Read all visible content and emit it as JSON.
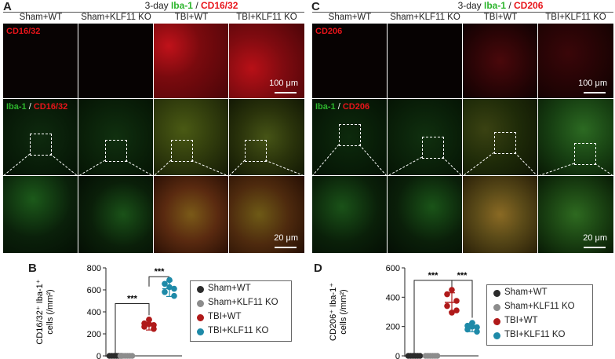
{
  "panels": {
    "A": {
      "letter": "A",
      "title_prefix": "3-day ",
      "title_green": "Iba-1",
      "title_sep": " / ",
      "title_red": "CD16/32",
      "row1_label": "CD16/32",
      "row2_label_green": "Iba-1",
      "row2_sep": " / ",
      "row2_label_red": "CD16/32",
      "scale1": "100 μm",
      "scale2": "20 μm"
    },
    "C": {
      "letter": "C",
      "title_prefix": "3-day ",
      "title_green": "Iba-1",
      "title_sep": " / ",
      "title_red": "CD206",
      "row1_label": "CD206",
      "row2_label_green": "Iba-1",
      "row2_sep": " / ",
      "row2_label_red": "CD206",
      "scale1": "100 μm",
      "scale2": "20 μm"
    },
    "B": {
      "letter": "B"
    },
    "D": {
      "letter": "D"
    }
  },
  "columns": [
    "Sham+WT",
    "Sham+KLF11 KO",
    "TBI+WT",
    "TBI+KLF11 KO"
  ],
  "legend": [
    {
      "label": "Sham+WT",
      "color": "#2b2b2b"
    },
    {
      "label": "Sham+KLF11 KO",
      "color": "#8c8c8c"
    },
    {
      "label": "TBI+WT",
      "color": "#b01a1a"
    },
    {
      "label": "TBI+KLF11 KO",
      "color": "#1e8aa8"
    }
  ],
  "chart_data": [
    {
      "type": "scatter",
      "panel": "B",
      "ylabel_line1": "CD16/32⁺ Iba-1⁺",
      "ylabel_line2": "cells (/mm²)",
      "ylim": [
        0,
        800
      ],
      "yticks": [
        0,
        200,
        400,
        600,
        800
      ],
      "series": [
        {
          "name": "Sham+WT",
          "mean": 0,
          "sd": 0,
          "points": [
            0,
            0,
            0,
            0,
            0,
            0
          ]
        },
        {
          "name": "Sham+KLF11 KO",
          "mean": 0,
          "sd": 0,
          "points": [
            0,
            0,
            0,
            0,
            0,
            0
          ]
        },
        {
          "name": "TBI+WT",
          "mean": 280,
          "sd": 45,
          "points": [
            330,
            295,
            280,
            265,
            245,
            290
          ]
        },
        {
          "name": "TBI+KLF11 KO",
          "mean": 610,
          "sd": 70,
          "points": [
            690,
            655,
            610,
            580,
            545,
            625
          ]
        }
      ],
      "comparisons": [
        {
          "from": 0,
          "to": 2,
          "label": "***"
        },
        {
          "from": 2,
          "to": 3,
          "label": "***"
        }
      ]
    },
    {
      "type": "scatter",
      "panel": "D",
      "ylabel_line1": "CD206⁺ Iba-1⁺",
      "ylabel_line2": "cells (/mm²)",
      "ylim": [
        0,
        600
      ],
      "yticks": [
        0,
        200,
        400,
        600
      ],
      "series": [
        {
          "name": "Sham+WT",
          "mean": 0,
          "sd": 0,
          "points": [
            0,
            0,
            0,
            0,
            0,
            0
          ]
        },
        {
          "name": "Sham+KLF11 KO",
          "mean": 0,
          "sd": 0,
          "points": [
            0,
            0,
            0,
            0,
            0,
            0
          ]
        },
        {
          "name": "TBI+WT",
          "mean": 365,
          "sd": 65,
          "points": [
            450,
            420,
            375,
            340,
            310,
            295
          ]
        },
        {
          "name": "TBI+KLF11 KO",
          "mean": 195,
          "sd": 30,
          "points": [
            225,
            205,
            195,
            180,
            165,
            200
          ]
        }
      ],
      "comparisons": [
        {
          "from": 0,
          "to": 2,
          "label": "***"
        },
        {
          "from": 2,
          "to": 3,
          "label": "***"
        }
      ]
    }
  ]
}
